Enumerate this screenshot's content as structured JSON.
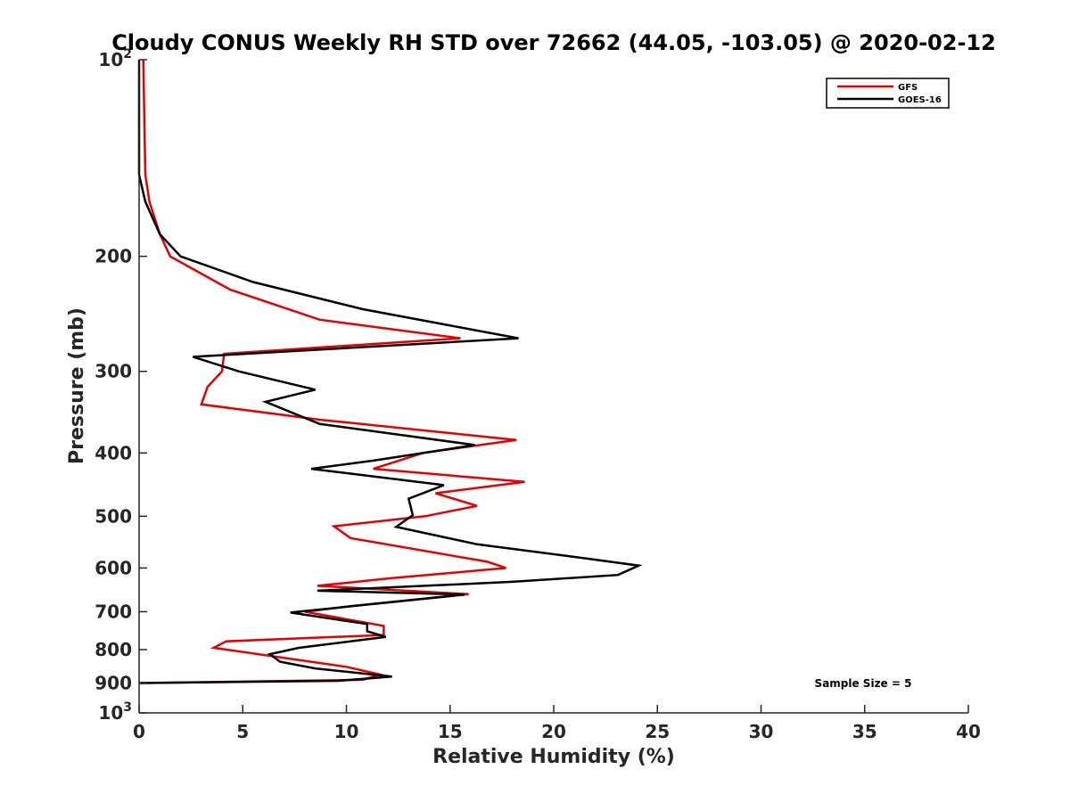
{
  "chart_data": {
    "type": "line",
    "title": "Cloudy CONUS Weekly RH STD over 72662 (44.05, -103.05) @ 2020-02-12",
    "xlabel": "Relative Humidity (%)",
    "ylabel": "Pressure (mb)",
    "xlim": [
      0,
      40
    ],
    "ylim": [
      100,
      1000
    ],
    "yscale": "log",
    "y_reversed": true,
    "grid": false,
    "legend_position": "top-right",
    "annotation": "Sample Size = 5",
    "x_ticks": [
      "0",
      "5",
      "10",
      "15",
      "20",
      "25",
      "30",
      "35",
      "40"
    ],
    "y_ticks": [
      {
        "value": 100,
        "base": "10",
        "exp": "2"
      },
      {
        "value": 200,
        "label": "200"
      },
      {
        "value": 300,
        "label": "300"
      },
      {
        "value": 400,
        "label": "400"
      },
      {
        "value": 500,
        "label": "500"
      },
      {
        "value": 600,
        "label": "600"
      },
      {
        "value": 700,
        "label": "700"
      },
      {
        "value": 800,
        "label": "800"
      },
      {
        "value": 900,
        "label": "900"
      },
      {
        "value": 1000,
        "base": "10",
        "exp": "3"
      }
    ],
    "series": [
      {
        "name": "GFS",
        "color": "#e60000",
        "points": [
          [
            0.2,
            100
          ],
          [
            0.3,
            150
          ],
          [
            0.5,
            165
          ],
          [
            1.0,
            185
          ],
          [
            1.5,
            200
          ],
          [
            4.4,
            225
          ],
          [
            8.7,
            250
          ],
          [
            15.5,
            267
          ],
          [
            4.1,
            282
          ],
          [
            4.0,
            300
          ],
          [
            3.3,
            317
          ],
          [
            3.0,
            337
          ],
          [
            8.8,
            356
          ],
          [
            18.2,
            382
          ],
          [
            13.7,
            400
          ],
          [
            11.3,
            423
          ],
          [
            18.6,
            443
          ],
          [
            14.3,
            461
          ],
          [
            16.3,
            482
          ],
          [
            13.8,
            500
          ],
          [
            9.4,
            518
          ],
          [
            10.2,
            540
          ],
          [
            16.8,
            587
          ],
          [
            17.7,
            600
          ],
          [
            12.2,
            622
          ],
          [
            8.6,
            639
          ],
          [
            15.9,
            658
          ],
          [
            10.3,
            686
          ],
          [
            8.0,
            700
          ],
          [
            11.8,
            736
          ],
          [
            11.8,
            760
          ],
          [
            4.2,
            777
          ],
          [
            3.6,
            795
          ],
          [
            10.0,
            850
          ],
          [
            11.6,
            873
          ],
          [
            10.8,
            890
          ],
          [
            0.1,
            900
          ]
        ]
      },
      {
        "name": "GOES-16",
        "color": "#000000",
        "points": [
          [
            0.0,
            100
          ],
          [
            0.0,
            150
          ],
          [
            0.3,
            165
          ],
          [
            1.0,
            185
          ],
          [
            2.0,
            200
          ],
          [
            5.5,
            219
          ],
          [
            10.8,
            241
          ],
          [
            18.3,
            267
          ],
          [
            2.6,
            285
          ],
          [
            4.8,
            300
          ],
          [
            8.5,
            320
          ],
          [
            6.1,
            334
          ],
          [
            8.7,
            361
          ],
          [
            16.2,
            389
          ],
          [
            11.3,
            411
          ],
          [
            8.3,
            423
          ],
          [
            14.7,
            448
          ],
          [
            13.0,
            470
          ],
          [
            13.2,
            498
          ],
          [
            12.4,
            519
          ],
          [
            16.3,
            552
          ],
          [
            21.9,
            582
          ],
          [
            24.1,
            595
          ],
          [
            23.1,
            615
          ],
          [
            18.0,
            630
          ],
          [
            8.6,
            650
          ],
          [
            15.7,
            659
          ],
          [
            7.3,
            702
          ],
          [
            11.0,
            731
          ],
          [
            11.0,
            750
          ],
          [
            11.9,
            765
          ],
          [
            7.7,
            795
          ],
          [
            6.3,
            813
          ],
          [
            6.8,
            835
          ],
          [
            8.5,
            855
          ],
          [
            12.2,
            880
          ],
          [
            9.6,
            893
          ],
          [
            0.0,
            900
          ]
        ]
      }
    ]
  }
}
